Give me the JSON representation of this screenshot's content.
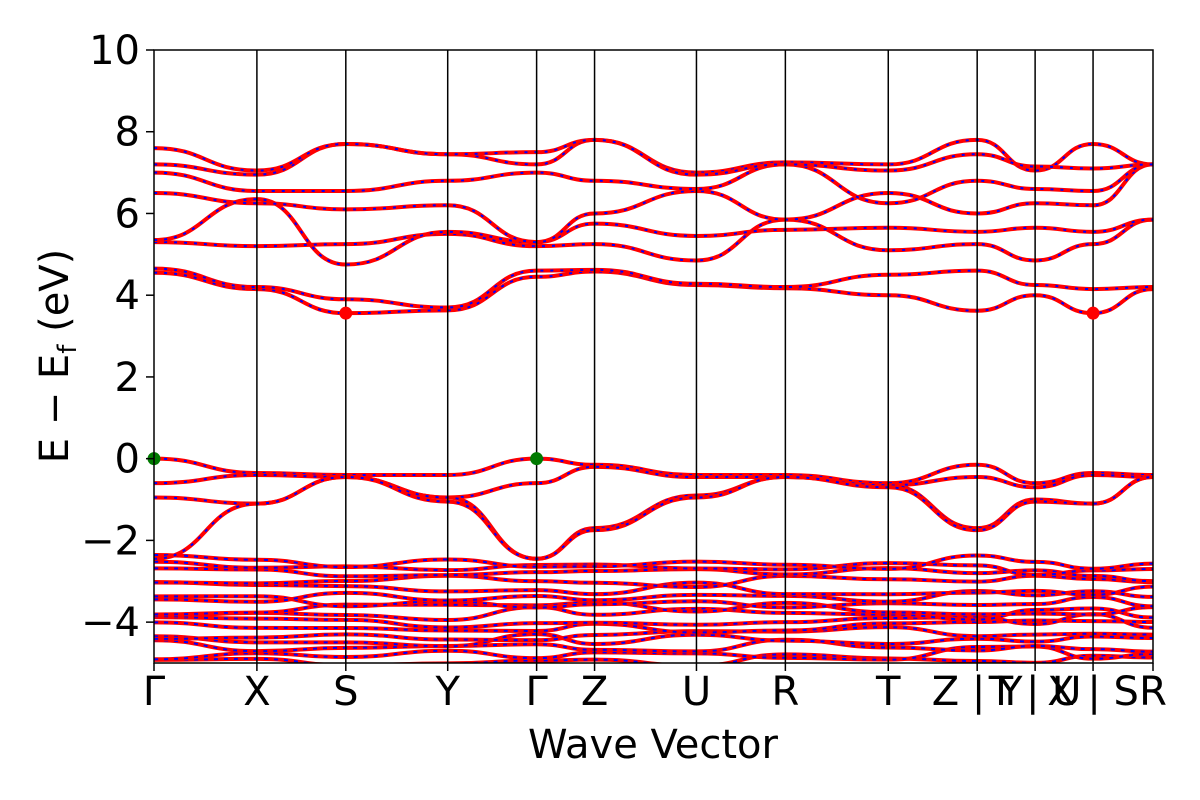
{
  "chart_data": {
    "type": "line",
    "xlabel": "Wave Vector",
    "ylabel_main": "E − E",
    "ylabel_sub": "f",
    "ylabel_unit": " (eV)",
    "ylim": [
      -5,
      10
    ],
    "yticks": [
      {
        "value": 10,
        "label": "10"
      },
      {
        "value": 8,
        "label": "8"
      },
      {
        "value": 6,
        "label": "6"
      },
      {
        "value": 4,
        "label": "4"
      },
      {
        "value": 2,
        "label": "2"
      },
      {
        "value": 0,
        "label": "0"
      },
      {
        "value": -2,
        "label": "−2"
      },
      {
        "value": -4,
        "label": "−4"
      }
    ],
    "xlim": [
      0,
      10
    ],
    "kpoints": [
      {
        "k": 0.0,
        "label": "Γ"
      },
      {
        "k": 1.03,
        "label": "X"
      },
      {
        "k": 1.92,
        "label": "S"
      },
      {
        "k": 2.94,
        "label": "Y"
      },
      {
        "k": 3.83,
        "label": "Γ"
      },
      {
        "k": 4.41,
        "label": "Z"
      },
      {
        "k": 5.43,
        "label": "U"
      },
      {
        "k": 6.32,
        "label": "R"
      },
      {
        "k": 7.35,
        "label": "T"
      },
      {
        "k": 8.24,
        "label": "Z|Y"
      },
      {
        "k": 8.82,
        "label": "T|U"
      },
      {
        "k": 9.4,
        "label": "X|S"
      },
      {
        "k": 10.0,
        "label": "R"
      }
    ],
    "tick_label_lines": [
      {
        "k": 8.24,
        "label": "Z | Y"
      },
      {
        "k": 8.82,
        "label": "T | U"
      },
      {
        "k": 9.4,
        "label": "X | S"
      }
    ],
    "band_colors": {
      "line": "#ff0000",
      "dash": "#0000ff"
    },
    "vbm_points": [
      {
        "k": 0.0,
        "E": 0.0
      },
      {
        "k": 3.83,
        "E": 0.0
      }
    ],
    "cbm_points": [
      {
        "k": 1.92,
        "E": 3.56
      },
      {
        "k": 9.4,
        "E": 3.56
      }
    ],
    "vbm_color": "#007a00",
    "cbm_color": "#ff0000",
    "bands": [
      {
        "name": "c1",
        "values": [
          4.55,
          4.15,
          3.56,
          3.63,
          4.45,
          4.58,
          4.25,
          4.17,
          4.0,
          3.62,
          4.0,
          3.56,
          4.15
        ]
      },
      {
        "name": "c2",
        "values": [
          4.65,
          4.2,
          3.9,
          3.7,
          4.6,
          4.62,
          4.28,
          4.2,
          4.5,
          4.6,
          4.25,
          4.15,
          4.2
        ]
      },
      {
        "name": "c3",
        "values": [
          5.3,
          5.2,
          5.25,
          5.5,
          5.2,
          5.25,
          4.85,
          5.85,
          5.1,
          5.25,
          4.85,
          5.25,
          5.85
        ]
      },
      {
        "name": "c4",
        "values": [
          5.35,
          6.35,
          4.75,
          5.55,
          5.3,
          5.75,
          5.45,
          5.6,
          5.65,
          5.55,
          5.65,
          5.55,
          5.85
        ]
      },
      {
        "name": "c5",
        "values": [
          6.5,
          6.25,
          6.1,
          6.2,
          5.3,
          6.0,
          6.55,
          5.85,
          6.5,
          6.0,
          6.25,
          6.2,
          7.2
        ]
      },
      {
        "name": "c6",
        "values": [
          7.0,
          6.55,
          6.55,
          6.8,
          7.0,
          6.8,
          6.6,
          7.2,
          6.25,
          6.8,
          6.6,
          6.55,
          7.2
        ]
      },
      {
        "name": "c7",
        "values": [
          7.2,
          6.95,
          7.7,
          7.45,
          7.2,
          7.8,
          7.0,
          7.25,
          7.2,
          7.8,
          7.05,
          7.7,
          7.2
        ]
      },
      {
        "name": "c8",
        "values": [
          7.6,
          7.05,
          7.7,
          7.45,
          7.5,
          7.8,
          6.95,
          7.2,
          7.05,
          7.45,
          7.15,
          7.1,
          7.2
        ]
      },
      {
        "name": "v1",
        "values": [
          0.0,
          -0.35,
          -0.4,
          -0.4,
          0.0,
          -0.15,
          -0.4,
          -0.4,
          -0.6,
          -0.15,
          -0.6,
          -0.35,
          -0.4
        ]
      },
      {
        "name": "v2",
        "values": [
          -0.6,
          -0.4,
          -0.45,
          -0.95,
          -0.6,
          -0.2,
          -0.45,
          -0.45,
          -0.65,
          -0.45,
          -0.7,
          -0.4,
          -0.45
        ]
      },
      {
        "name": "v3",
        "values": [
          -0.95,
          -1.1,
          -0.45,
          -0.95,
          -2.45,
          -1.7,
          -0.9,
          -0.45,
          -0.65,
          -1.7,
          -1.0,
          -1.1,
          -0.45
        ]
      },
      {
        "name": "v4",
        "values": [
          -2.45,
          -1.1,
          -0.45,
          -1.05,
          -2.45,
          -1.75,
          -0.95,
          -0.45,
          -0.7,
          -1.75,
          -1.05,
          -1.1,
          -0.45
        ]
      }
    ],
    "dense_band_bottom": -5.0,
    "dense_band_top": -2.45
  }
}
